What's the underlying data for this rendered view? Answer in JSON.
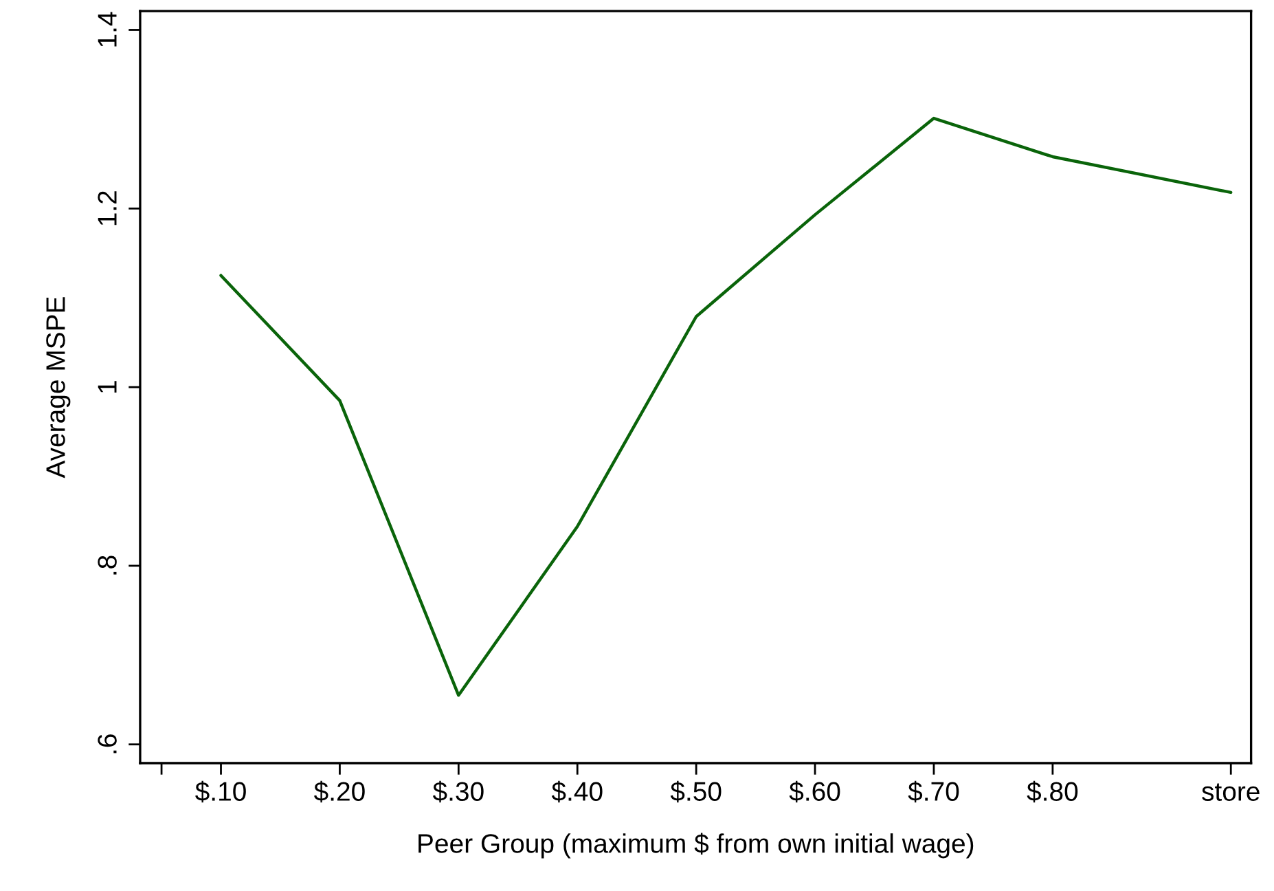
{
  "chart_data": {
    "type": "line",
    "xlabel": "Peer Group (maximum $ from own initial wage)",
    "ylabel": "Average MSPE",
    "x": [
      0.1,
      0.2,
      0.3,
      0.4,
      0.5,
      0.6,
      0.7,
      0.8,
      0.95
    ],
    "series": [
      {
        "color": "#0a640a",
        "values": [
          1.125,
          0.985,
          0.655,
          0.844,
          1.079,
          1.193,
          1.301,
          1.258,
          1.218
        ]
      }
    ],
    "xlim": [
      0.032,
      0.967
    ],
    "ylim": [
      0.579,
      1.421
    ],
    "xticks": [
      {
        "value": 0.05,
        "label": null
      },
      {
        "value": 0.1,
        "label": "$.10"
      },
      {
        "value": 0.2,
        "label": "$.20"
      },
      {
        "value": 0.3,
        "label": "$.30"
      },
      {
        "value": 0.4,
        "label": "$.40"
      },
      {
        "value": 0.5,
        "label": "$.50"
      },
      {
        "value": 0.6,
        "label": "$.60"
      },
      {
        "value": 0.7,
        "label": "$.70"
      },
      {
        "value": 0.8,
        "label": "$.80"
      },
      {
        "value": 0.95,
        "label": "store"
      }
    ],
    "yticks": [
      {
        "value": 0.6,
        "label": ".6"
      },
      {
        "value": 0.8,
        "label": ".8"
      },
      {
        "value": 1.0,
        "label": "1"
      },
      {
        "value": 1.2,
        "label": "1.2"
      },
      {
        "value": 1.4,
        "label": "1.4"
      }
    ],
    "grid": false,
    "marker": "none",
    "line_style": "solid"
  }
}
